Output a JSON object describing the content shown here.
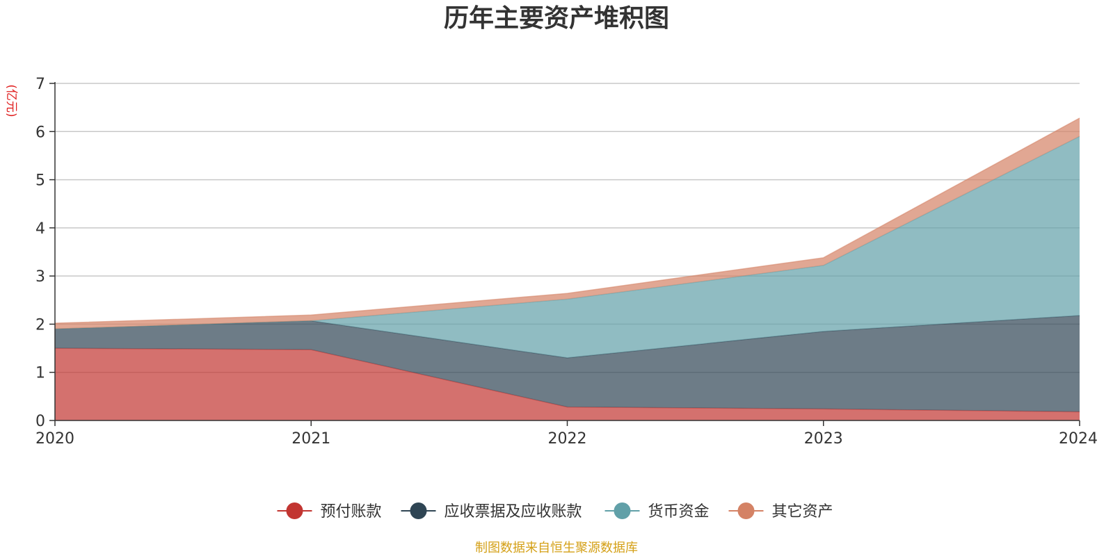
{
  "chart_data": {
    "type": "area",
    "stacked": true,
    "title": "历年主要资产堆积图",
    "y_unit": "(亿元)",
    "ylim": [
      0,
      7
    ],
    "yticks": [
      0,
      1,
      2,
      3,
      4,
      5,
      6,
      7
    ],
    "grid": true,
    "legend_position": "bottom",
    "x": [
      "2020",
      "2021",
      "2022",
      "2023",
      "2024"
    ],
    "series": [
      {
        "name": "预付账款",
        "color": "#c23531",
        "values": [
          1.5,
          1.47,
          0.28,
          0.24,
          0.18
        ]
      },
      {
        "name": "应收票据及应收账款",
        "color": "#2f4554",
        "values": [
          0.4,
          0.6,
          1.02,
          1.61,
          2.0
        ]
      },
      {
        "name": "货币资金",
        "color": "#61a0a8",
        "values": [
          0.0,
          0.0,
          1.22,
          1.37,
          3.72
        ]
      },
      {
        "name": "其它资产",
        "color": "#d48265",
        "values": [
          0.12,
          0.12,
          0.12,
          0.16,
          0.38
        ]
      }
    ],
    "source_note": "制图数据来自恒生聚源数据库"
  }
}
